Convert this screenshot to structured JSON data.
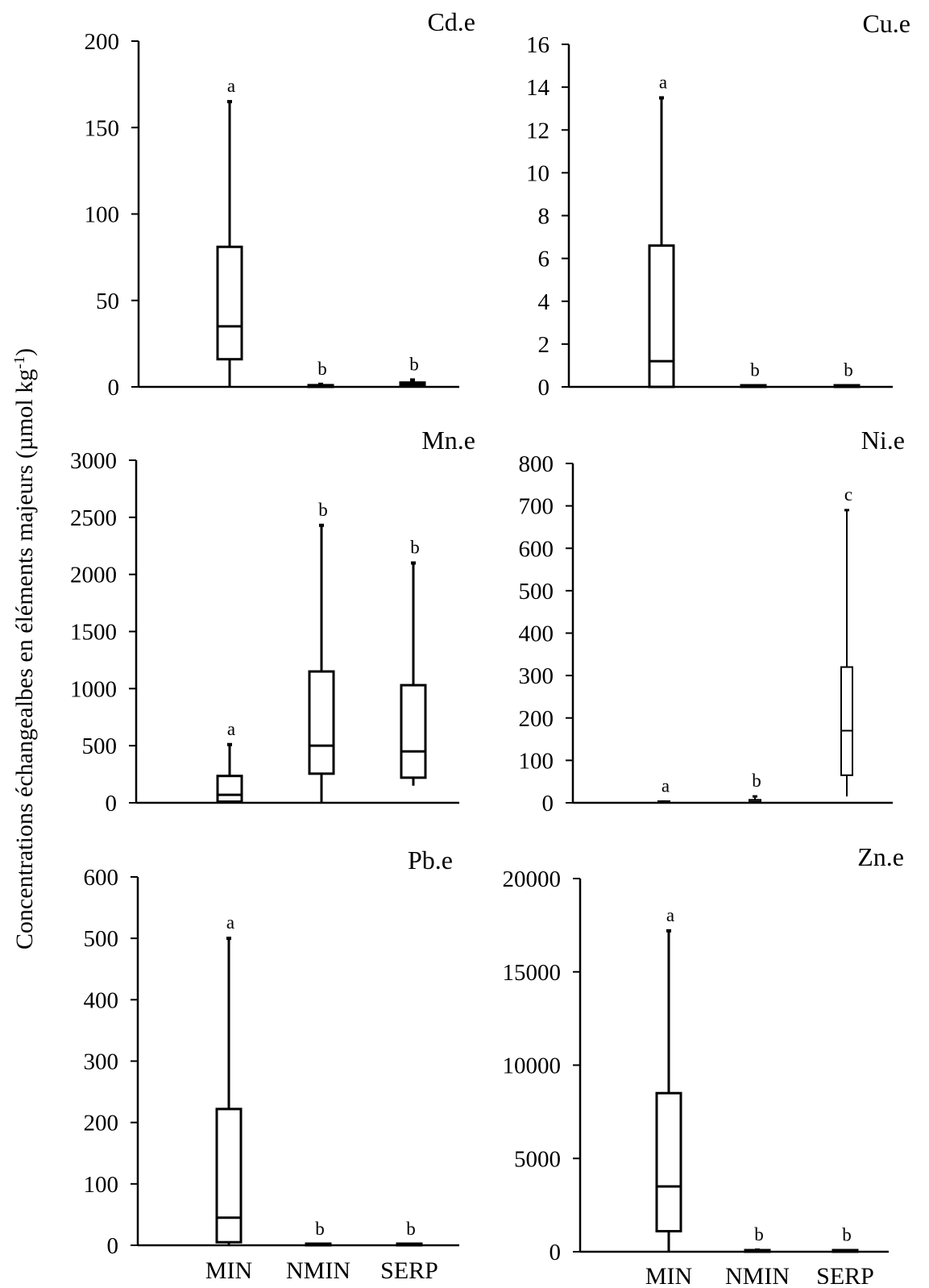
{
  "ylabel": "Concentrations échangealbes en éléments majeurs (µmol kg",
  "ylabel_sup": "-1",
  "ylabel_end": ")",
  "chart_data": [
    {
      "type": "box",
      "title": "Cd.e",
      "categories": [
        "MIN",
        "NMIN",
        "SERP"
      ],
      "ylim": [
        0,
        200
      ],
      "yticks": [
        "0",
        "50",
        "100",
        "150",
        "200"
      ],
      "show_x_labels": false,
      "boxes": [
        {
          "min": 0,
          "q1": 16,
          "median": 35,
          "q3": 81,
          "max": 165,
          "letter": "a"
        },
        {
          "min": 0,
          "q1": 0,
          "median": 0.5,
          "q3": 1,
          "max": 1.5,
          "letter": "b"
        },
        {
          "min": 0,
          "q1": 0.5,
          "median": 1.5,
          "q3": 2.5,
          "max": 4,
          "letter": "b"
        }
      ]
    },
    {
      "type": "box",
      "title": "Cu.e",
      "categories": [
        "MIN",
        "NMIN",
        "SERP"
      ],
      "ylim": [
        0,
        16
      ],
      "yticks": [
        "0",
        "2",
        "4",
        "6",
        "8",
        "10",
        "12",
        "14",
        "16"
      ],
      "show_x_labels": false,
      "boxes": [
        {
          "min": 0,
          "q1": 0,
          "median": 1.2,
          "q3": 6.6,
          "max": 13.5,
          "letter": "a"
        },
        {
          "min": 0,
          "q1": 0,
          "median": 0,
          "q3": 0.02,
          "max": 0.05,
          "letter": "b"
        },
        {
          "min": 0,
          "q1": 0,
          "median": 0,
          "q3": 0.02,
          "max": 0.05,
          "letter": "b"
        }
      ]
    },
    {
      "type": "box",
      "title": "Mn.e",
      "categories": [
        "MIN",
        "NMIN",
        "SERP"
      ],
      "ylim": [
        0,
        3000
      ],
      "yticks": [
        "0",
        "500",
        "1000",
        "1500",
        "2000",
        "2500",
        "3000"
      ],
      "show_x_labels": false,
      "boxes": [
        {
          "min": 0,
          "q1": 10,
          "median": 70,
          "q3": 235,
          "max": 510,
          "letter": "a"
        },
        {
          "min": 0,
          "q1": 255,
          "median": 500,
          "q3": 1150,
          "max": 2430,
          "letter": "b"
        },
        {
          "min": 150,
          "q1": 220,
          "median": 450,
          "q3": 1030,
          "max": 2100,
          "letter": "b"
        }
      ]
    },
    {
      "type": "box",
      "title": "Ni.e",
      "categories": [
        "MIN",
        "NMIN",
        "SERP"
      ],
      "ylim": [
        0,
        800
      ],
      "yticks": [
        "0",
        "100",
        "200",
        "300",
        "400",
        "500",
        "600",
        "700",
        "800"
      ],
      "show_x_labels": false,
      "thin": true,
      "boxes": [
        {
          "min": 0,
          "q1": 0,
          "median": 1,
          "q3": 2,
          "max": 3,
          "letter": "a"
        },
        {
          "min": 0,
          "q1": 1,
          "median": 3,
          "q3": 7,
          "max": 15,
          "letter": "b"
        },
        {
          "min": 15,
          "q1": 65,
          "median": 170,
          "q3": 320,
          "max": 690,
          "letter": "c"
        }
      ]
    },
    {
      "type": "box",
      "title": "Pb.e",
      "categories": [
        "MIN",
        "NMIN",
        "SERP"
      ],
      "ylim": [
        0,
        600
      ],
      "yticks": [
        "0",
        "100",
        "200",
        "300",
        "400",
        "500",
        "600"
      ],
      "show_x_labels": true,
      "boxes": [
        {
          "min": 0,
          "q1": 5,
          "median": 45,
          "q3": 222,
          "max": 500,
          "letter": "a"
        },
        {
          "min": 0,
          "q1": 0,
          "median": 0,
          "q3": 0.5,
          "max": 1,
          "letter": "b"
        },
        {
          "min": 0,
          "q1": 0,
          "median": 0,
          "q3": 0.5,
          "max": 1,
          "letter": "b"
        }
      ]
    },
    {
      "type": "box",
      "title": "Zn.e",
      "categories": [
        "MIN",
        "NMIN",
        "SERP"
      ],
      "ylim": [
        0,
        20000
      ],
      "yticks": [
        "0",
        "5000",
        "10000",
        "15000",
        "20000"
      ],
      "show_x_labels": true,
      "boxes": [
        {
          "min": 0,
          "q1": 1100,
          "median": 3500,
          "q3": 8500,
          "max": 17200,
          "letter": "a"
        },
        {
          "min": 0,
          "q1": 0,
          "median": 20,
          "q3": 50,
          "max": 90,
          "letter": "b"
        },
        {
          "min": 0,
          "q1": 0,
          "median": 10,
          "q3": 30,
          "max": 60,
          "letter": "b"
        }
      ]
    }
  ]
}
